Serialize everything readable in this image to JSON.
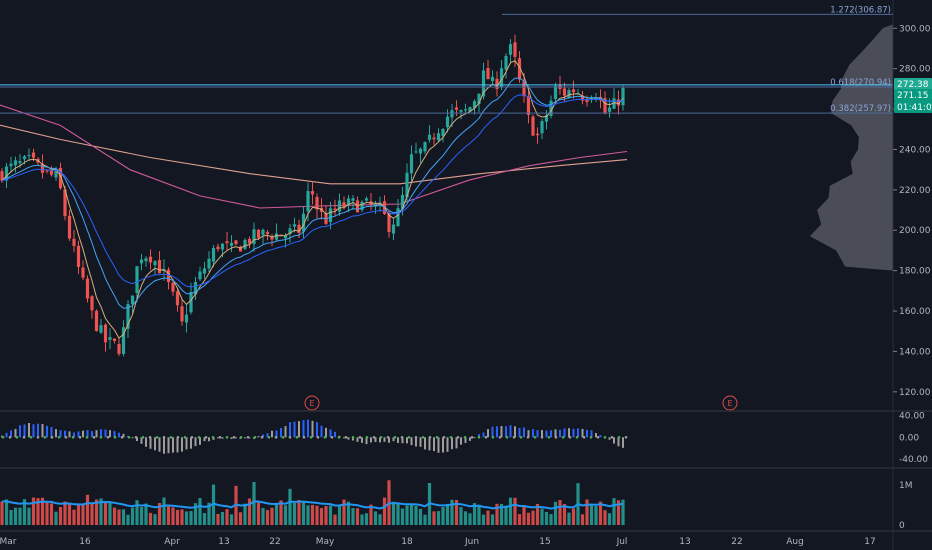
{
  "chart_data": {
    "type": "candlestick",
    "x_ticks": [
      "Mar",
      "16",
      "Apr",
      "13",
      "22",
      "May",
      "18",
      "Jun",
      "15",
      "Jul",
      "13",
      "22",
      "Aug",
      "17"
    ],
    "price_axis": {
      "ticks": [
        "300.00",
        "280.00",
        "260.00",
        "240.00",
        "220.00",
        "200.00",
        "180.00",
        "160.00",
        "140.00",
        "120.00"
      ],
      "range": [
        111,
        314
      ]
    },
    "fib_levels": [
      {
        "label": "1.272(306.87)",
        "value": 306.87
      },
      {
        "label": "0.618(270.94)",
        "value": 270.94
      },
      {
        "label": "0.382(257.97)",
        "value": 257.97
      }
    ],
    "price_tags": [
      {
        "label": "272.38",
        "value": 272.38,
        "color": "#22ab94"
      },
      {
        "label": "271.15",
        "value": 271.15,
        "color": "#089981"
      },
      {
        "label": "01:41:07",
        "value": 258.2,
        "color": "#089981"
      }
    ],
    "horizontal_line": 272.0,
    "earnings_markers": [
      "E",
      "E"
    ],
    "oscillator": {
      "ticks": [
        "40.00",
        "0.00",
        "-40.00"
      ],
      "range": [
        -55,
        45
      ]
    },
    "volume": {
      "ticks": [
        "1M",
        "0"
      ],
      "max": 1200000
    },
    "colors": {
      "up": "#26a69a",
      "down": "#ef5350",
      "background": "#131722",
      "fib": "#4c6a9e",
      "hline": "#4fc3f7",
      "ema_fast": "#d4b07a",
      "ema_mid": "#42a5f5",
      "ema_slow": "#2962ff",
      "sma_long": "#e0a090",
      "sma_long2": "#d05a9a",
      "macd_up": "#2962ff",
      "macd_down": "#9e9e9e",
      "volume_ma": "#2196f3"
    },
    "legend": "none",
    "grid": false
  }
}
